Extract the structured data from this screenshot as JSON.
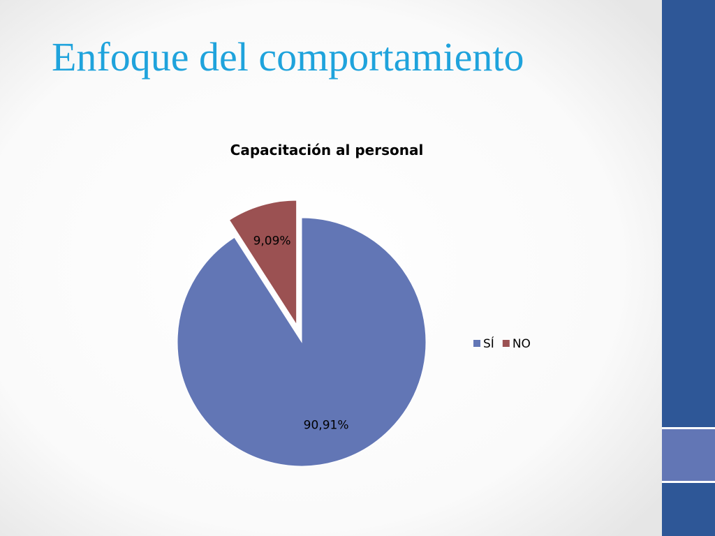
{
  "slide": {
    "title": "Enfoque del comportamiento"
  },
  "chart_data": {
    "type": "pie",
    "title": "Capacitación al personal",
    "categories": [
      "SÍ",
      "NO"
    ],
    "values": [
      90.91,
      9.09
    ],
    "value_labels": [
      "90,91%",
      "9,09%"
    ],
    "colors": [
      "#6276b5",
      "#9b5152"
    ],
    "exploded": [
      false,
      true
    ],
    "legend": "right"
  }
}
